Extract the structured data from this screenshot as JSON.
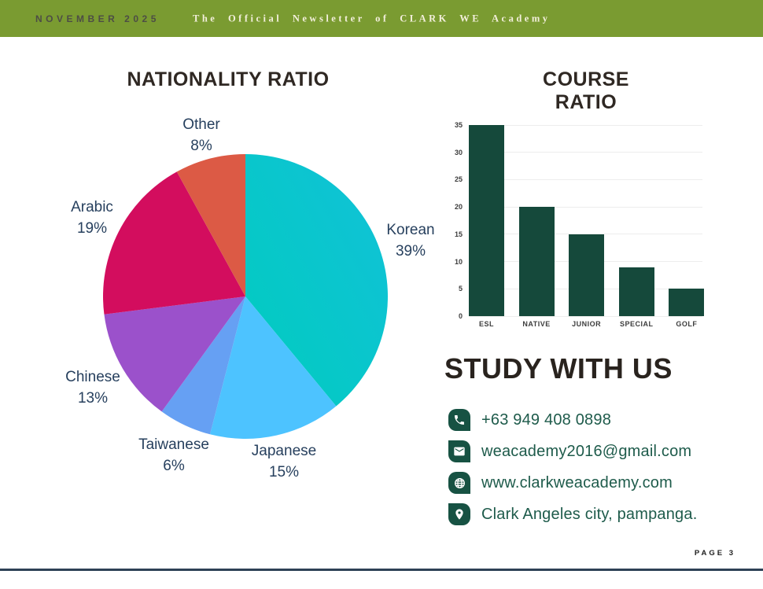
{
  "header": {
    "issue_date": "NOVEMBER 2025",
    "newsletter_title": "The Official Newsletter of CLARK WE Academy",
    "background_color": "#7A9B31"
  },
  "chart_data": [
    {
      "type": "pie",
      "title": "NATIONALITY RATIO",
      "unit": "%",
      "start_angle_deg": 0,
      "direction": "clockwise",
      "label_color": "#27405E",
      "slices": [
        {
          "label": "Korean",
          "value": 39,
          "color": "#12C1D9",
          "color2": "#00CCBE"
        },
        {
          "label": "Japanese",
          "value": 15,
          "color": "#4DC3FF"
        },
        {
          "label": "Taiwanese",
          "value": 6,
          "color": "#66A0F3"
        },
        {
          "label": "Chinese",
          "value": 13,
          "color": "#9B51CB"
        },
        {
          "label": "Arabic",
          "value": 19,
          "color": "#D30D5E"
        },
        {
          "label": "Other",
          "value": 8,
          "color": "#DC5A45"
        }
      ]
    },
    {
      "type": "bar",
      "title": "COURSE RATIO",
      "categories": [
        "ESL",
        "NATIVE",
        "JUNIOR",
        "SPECIAL",
        "GOLF"
      ],
      "values": [
        35,
        20,
        15,
        9,
        5
      ],
      "ylim": [
        0,
        35
      ],
      "ytick_step": 5,
      "grid": true,
      "legend": "none",
      "bar_color": "#15493B",
      "tick_color": "#3D3D3D"
    }
  ],
  "study": {
    "heading": "STUDY WITH US",
    "accent_color": "#1E5B4B",
    "contacts": [
      {
        "icon": "phone-icon",
        "text": "+63 949 408 0898"
      },
      {
        "icon": "email-icon",
        "text": "weacademy2016@gmail.com"
      },
      {
        "icon": "globe-icon",
        "text": "www.clarkweacademy.com"
      },
      {
        "icon": "location-pin-icon",
        "text": "Clark Angeles city, pampanga."
      }
    ]
  },
  "footer": {
    "page_label": "PAGE 3",
    "divider_color": "#2E4156"
  }
}
